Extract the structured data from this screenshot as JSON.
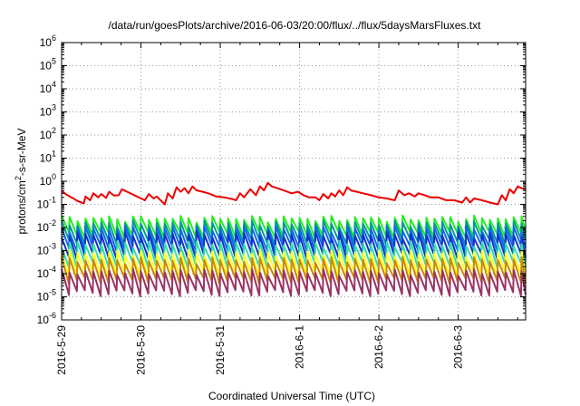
{
  "chart_data": {
    "type": "line",
    "title": "/data/run/goesPlots/archive/2016-06-03/20:00/flux/../flux/5daysMarsFluxes.txt",
    "xlabel": "Coordinated Universal Time (UTC)",
    "ylabel": {
      "prefix": "protons/cm",
      "superscript": "2",
      "suffix": "-s-sr-MeV"
    },
    "y_scale": "log",
    "ylim_exponents": [
      -6,
      6
    ],
    "y_ticks": [
      {
        "base": "10",
        "exp": "-6"
      },
      {
        "base": "10",
        "exp": "-5"
      },
      {
        "base": "10",
        "exp": "-4"
      },
      {
        "base": "10",
        "exp": "-3"
      },
      {
        "base": "10",
        "exp": "-2"
      },
      {
        "base": "10",
        "exp": "-1"
      },
      {
        "base": "10",
        "exp": "0"
      },
      {
        "base": "10",
        "exp": "1"
      },
      {
        "base": "10",
        "exp": "2"
      },
      {
        "base": "10",
        "exp": "3"
      },
      {
        "base": "10",
        "exp": "4"
      },
      {
        "base": "10",
        "exp": "5"
      },
      {
        "base": "10",
        "exp": "6"
      }
    ],
    "x_ticks": [
      "2016-5-29",
      "2016-5-30",
      "2016-5-31",
      "2016-6-1",
      "2016-6-2",
      "2016-6-3"
    ],
    "x_range_days": [
      0,
      5.85
    ],
    "grid": true,
    "grid_style": "dotted",
    "legend": "none",
    "series": [
      {
        "color": "#ee0000",
        "values": [
          [
            0.0,
            0.38
          ],
          [
            0.05,
            0.28
          ],
          [
            0.1,
            0.22
          ],
          [
            0.15,
            0.18
          ],
          [
            0.2,
            0.14
          ],
          [
            0.28,
            0.11
          ],
          [
            0.3,
            0.22
          ],
          [
            0.36,
            0.15
          ],
          [
            0.4,
            0.3
          ],
          [
            0.46,
            0.2
          ],
          [
            0.5,
            0.28
          ],
          [
            0.56,
            0.19
          ],
          [
            0.6,
            0.35
          ],
          [
            0.66,
            0.24
          ],
          [
            0.72,
            0.25
          ],
          [
            0.76,
            0.45
          ],
          [
            0.85,
            0.32
          ],
          [
            0.95,
            0.22
          ],
          [
            1.05,
            0.15
          ],
          [
            1.1,
            0.28
          ],
          [
            1.16,
            0.18
          ],
          [
            1.2,
            0.22
          ],
          [
            1.3,
            0.1
          ],
          [
            1.34,
            0.3
          ],
          [
            1.4,
            0.18
          ],
          [
            1.45,
            0.55
          ],
          [
            1.5,
            0.35
          ],
          [
            1.55,
            0.5
          ],
          [
            1.6,
            0.3
          ],
          [
            1.65,
            0.6
          ],
          [
            1.7,
            0.4
          ],
          [
            1.78,
            0.35
          ],
          [
            1.85,
            0.3
          ],
          [
            1.95,
            0.22
          ],
          [
            2.05,
            0.2
          ],
          [
            2.15,
            0.17
          ],
          [
            2.2,
            0.15
          ],
          [
            2.25,
            0.3
          ],
          [
            2.3,
            0.2
          ],
          [
            2.38,
            0.45
          ],
          [
            2.45,
            0.25
          ],
          [
            2.5,
            0.6
          ],
          [
            2.55,
            0.4
          ],
          [
            2.6,
            0.85
          ],
          [
            2.65,
            0.6
          ],
          [
            2.72,
            0.5
          ],
          [
            2.8,
            0.4
          ],
          [
            2.9,
            0.3
          ],
          [
            2.98,
            0.35
          ],
          [
            3.05,
            0.25
          ],
          [
            3.12,
            0.2
          ],
          [
            3.2,
            0.2
          ],
          [
            3.25,
            0.15
          ],
          [
            3.3,
            0.28
          ],
          [
            3.36,
            0.18
          ],
          [
            3.4,
            0.3
          ],
          [
            3.45,
            0.22
          ],
          [
            3.5,
            0.4
          ],
          [
            3.55,
            0.25
          ],
          [
            3.6,
            0.55
          ],
          [
            3.65,
            0.4
          ],
          [
            3.72,
            0.35
          ],
          [
            3.8,
            0.3
          ],
          [
            3.9,
            0.25
          ],
          [
            4.0,
            0.2
          ],
          [
            4.1,
            0.18
          ],
          [
            4.2,
            0.15
          ],
          [
            4.25,
            0.4
          ],
          [
            4.32,
            0.25
          ],
          [
            4.38,
            0.3
          ],
          [
            4.45,
            0.22
          ],
          [
            4.5,
            0.3
          ],
          [
            4.58,
            0.25
          ],
          [
            4.65,
            0.2
          ],
          [
            4.75,
            0.2
          ],
          [
            4.85,
            0.15
          ],
          [
            4.95,
            0.15
          ],
          [
            5.05,
            0.12
          ],
          [
            5.1,
            0.2
          ],
          [
            5.15,
            0.12
          ],
          [
            5.2,
            0.18
          ],
          [
            5.3,
            0.15
          ],
          [
            5.4,
            0.12
          ],
          [
            5.5,
            0.1
          ],
          [
            5.55,
            0.25
          ],
          [
            5.6,
            0.15
          ],
          [
            5.65,
            0.45
          ],
          [
            5.7,
            0.3
          ],
          [
            5.75,
            0.6
          ],
          [
            5.8,
            0.5
          ],
          [
            5.85,
            0.45
          ]
        ]
      },
      {
        "color": "#22ee22",
        "peak": 0.025,
        "base": 0.005
      },
      {
        "color": "#009999",
        "peak": 0.015,
        "base": 0.0025
      },
      {
        "color": "#1166ee",
        "peak": 0.009,
        "base": 0.0013
      },
      {
        "color": "#1133cc",
        "peak": 0.005,
        "base": 0.0006
      },
      {
        "color": "#33ddaa",
        "peak": 0.002,
        "base": 0.00025
      },
      {
        "color": "#ffff22",
        "peak": 0.0008,
        "base": 0.0001
      },
      {
        "color": "#cc8800",
        "peak": 0.0004,
        "base": 5e-05
      },
      {
        "color": "#993366",
        "peak": 0.00012,
        "base": 1.5e-05
      }
    ],
    "sawtooth_period_days": 0.1,
    "plot_area_border": "#000000",
    "grid_color": "#999999"
  }
}
